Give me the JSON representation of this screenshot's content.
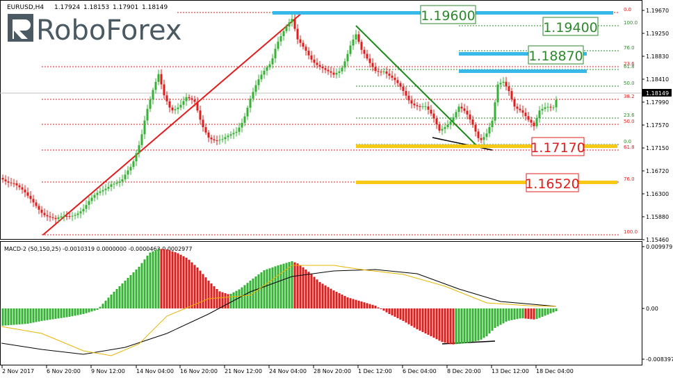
{
  "window": {
    "title": "EURUSD,H4",
    "ohlc": [
      "1.17924",
      "1.18153",
      "1.17901",
      "1.18149"
    ]
  },
  "logo": {
    "text": "RoboForex"
  },
  "macd": {
    "title": "MACD-2 (50,150,25) -0.0010319 0.0000000 -0.0000463 0.0002977",
    "axis": [
      "0.009979",
      "0.00",
      "-0.008397"
    ]
  },
  "price_axis": {
    "ticks": [
      "1.19670",
      "1.19250",
      "1.18830",
      "1.18410",
      "1.17990",
      "1.17570",
      "1.17150",
      "1.16720",
      "1.16300",
      "1.15880",
      "1.15460"
    ],
    "current": "1.18149"
  },
  "time_axis": [
    "2 Nov 2017",
    "6 Nov 20:00",
    "9 Nov 12:00",
    "14 Nov 04:00",
    "16 Nov 20:00",
    "21 Nov 12:00",
    "24 Nov 04:00",
    "28 Nov 20:00",
    "1 Dec 12:00",
    "6 Dec 04:00",
    "8 Dec 20:00",
    "13 Dec 12:00",
    "18 Dec 04:00"
  ],
  "targets": {
    "t1": "1.19600",
    "t2": "1.19400",
    "t3": "1.18870",
    "t4": "1.17170",
    "t5": "1.16520"
  },
  "fib_left": [
    "0.0",
    "100.0",
    "76.0",
    "23.6",
    "61.8",
    "50.0",
    "38.2",
    "23.6",
    "50.0",
    "0.0",
    "61.8",
    "76.0",
    "100.0"
  ],
  "colors": {
    "bull": "#33b233",
    "bear": "#e21b1b",
    "green_label": "#2a8a2a",
    "red_label": "#e21b1b",
    "cyan": "#36b8e8",
    "gold": "#f6c917"
  }
}
